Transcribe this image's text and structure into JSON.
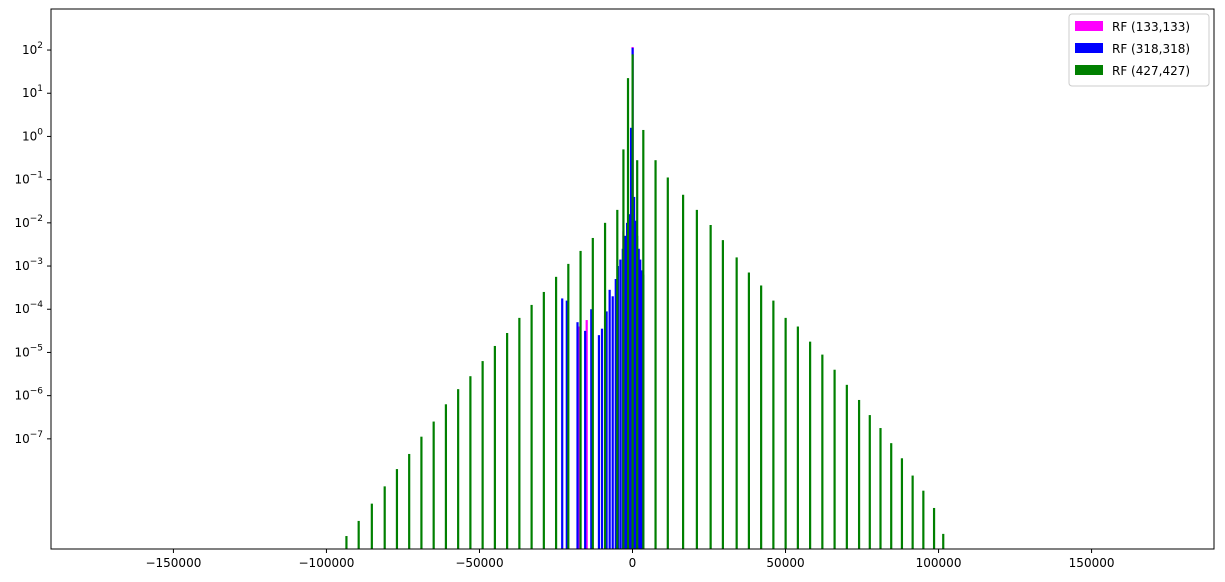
{
  "chart_data": {
    "type": "bar",
    "title": "",
    "xlabel": "",
    "ylabel": "",
    "xscale": "linear",
    "yscale": "log",
    "xlim": [
      -190000,
      190000
    ],
    "ylim_log10": [
      -9.55,
      2.95
    ],
    "grid": false,
    "legend_position": "top-right",
    "x_ticks": [
      {
        "value": -150000,
        "label": "−150000"
      },
      {
        "value": -100000,
        "label": "−100000"
      },
      {
        "value": -50000,
        "label": "−50000"
      },
      {
        "value": 0,
        "label": "0"
      },
      {
        "value": 50000,
        "label": "50000"
      },
      {
        "value": 100000,
        "label": "100000"
      },
      {
        "value": 150000,
        "label": "150000"
      }
    ],
    "y_ticks": [
      {
        "exp": 2,
        "base": "10",
        "label": "2"
      },
      {
        "exp": 1,
        "base": "10",
        "label": "1"
      },
      {
        "exp": 0,
        "base": "10",
        "label": "0"
      },
      {
        "exp": -1,
        "base": "10",
        "label": "−1"
      },
      {
        "exp": -2,
        "base": "10",
        "label": "−2"
      },
      {
        "exp": -3,
        "base": "10",
        "label": "−3"
      },
      {
        "exp": -4,
        "base": "10",
        "label": "−4"
      },
      {
        "exp": -5,
        "base": "10",
        "label": "−5"
      },
      {
        "exp": -6,
        "base": "10",
        "label": "−6"
      },
      {
        "exp": -7,
        "base": "10",
        "label": "−7"
      }
    ],
    "series": [
      {
        "name": "RF (133,133)",
        "color": "#ff00ff",
        "bars": [
          {
            "x": 0,
            "log10y": 2.07
          },
          {
            "x": -3000,
            "log10y": -2.2
          },
          {
            "x": -15000,
            "log10y": -4.25
          },
          {
            "x": -17500,
            "log10y": -4.4
          }
        ]
      },
      {
        "name": "RF (318,318)",
        "color": "#0000ff",
        "bars": [
          {
            "x": -23000,
            "log10y": -3.75
          },
          {
            "x": -21500,
            "log10y": -3.8
          },
          {
            "x": -18000,
            "log10y": -4.3
          },
          {
            "x": -15500,
            "log10y": -4.5
          },
          {
            "x": -13500,
            "log10y": -4.0
          },
          {
            "x": -11000,
            "log10y": -4.6
          },
          {
            "x": -10000,
            "log10y": -4.45
          },
          {
            "x": -9000,
            "log10y": -4.15
          },
          {
            "x": -8500,
            "log10y": -4.05
          },
          {
            "x": -7500,
            "log10y": -3.55
          },
          {
            "x": -6500,
            "log10y": -3.7
          },
          {
            "x": -5500,
            "log10y": -3.3
          },
          {
            "x": -4800,
            "log10y": -3.0
          },
          {
            "x": -4000,
            "log10y": -2.85
          },
          {
            "x": -3200,
            "log10y": -2.6
          },
          {
            "x": -2500,
            "log10y": -2.3
          },
          {
            "x": -1800,
            "log10y": -2.0
          },
          {
            "x": -1000,
            "log10y": -1.8
          },
          {
            "x": -500,
            "log10y": 0.2
          },
          {
            "x": 0,
            "log10y": 2.05
          },
          {
            "x": 500,
            "log10y": -1.4
          },
          {
            "x": 1000,
            "log10y": -1.95
          },
          {
            "x": 1500,
            "log10y": -2.3
          },
          {
            "x": 2000,
            "log10y": -2.6
          },
          {
            "x": 2500,
            "log10y": -2.85
          },
          {
            "x": 3000,
            "log10y": -3.1
          },
          {
            "x": 3500,
            "log10y": -3.2
          }
        ]
      },
      {
        "name": "RF (427,427)",
        "color": "#008000",
        "bars": [
          {
            "x": -93500,
            "log10y": -9.25
          },
          {
            "x": -89500,
            "log10y": -8.9
          },
          {
            "x": -85200,
            "log10y": -8.5
          },
          {
            "x": -81000,
            "log10y": -8.1
          },
          {
            "x": -77000,
            "log10y": -7.7
          },
          {
            "x": -73000,
            "log10y": -7.35
          },
          {
            "x": -69000,
            "log10y": -6.95
          },
          {
            "x": -65000,
            "log10y": -6.6
          },
          {
            "x": -61000,
            "log10y": -6.2
          },
          {
            "x": -57000,
            "log10y": -5.85
          },
          {
            "x": -53000,
            "log10y": -5.55
          },
          {
            "x": -49000,
            "log10y": -5.2
          },
          {
            "x": -45000,
            "log10y": -4.85
          },
          {
            "x": -41000,
            "log10y": -4.55
          },
          {
            "x": -37000,
            "log10y": -4.2
          },
          {
            "x": -33000,
            "log10y": -3.9
          },
          {
            "x": -29000,
            "log10y": -3.6
          },
          {
            "x": -25000,
            "log10y": -3.25
          },
          {
            "x": -21000,
            "log10y": -2.95
          },
          {
            "x": -17000,
            "log10y": -2.65
          },
          {
            "x": -13000,
            "log10y": -2.35
          },
          {
            "x": -9000,
            "log10y": -2.0
          },
          {
            "x": -5000,
            "log10y": -1.7
          },
          {
            "x": -3000,
            "log10y": -0.3
          },
          {
            "x": -1500,
            "log10y": 1.35
          },
          {
            "x": 0,
            "log10y": 1.9
          },
          {
            "x": 1500,
            "log10y": -0.55
          },
          {
            "x": 3500,
            "log10y": 0.15
          },
          {
            "x": 7500,
            "log10y": -0.55
          },
          {
            "x": 11500,
            "log10y": -0.95
          },
          {
            "x": 16500,
            "log10y": -1.35
          },
          {
            "x": 21000,
            "log10y": -1.7
          },
          {
            "x": 25500,
            "log10y": -2.05
          },
          {
            "x": 29500,
            "log10y": -2.4
          },
          {
            "x": 34000,
            "log10y": -2.8
          },
          {
            "x": 38000,
            "log10y": -3.15
          },
          {
            "x": 42000,
            "log10y": -3.45
          },
          {
            "x": 46000,
            "log10y": -3.8
          },
          {
            "x": 50000,
            "log10y": -4.2
          },
          {
            "x": 54000,
            "log10y": -4.4
          },
          {
            "x": 58000,
            "log10y": -4.75
          },
          {
            "x": 62000,
            "log10y": -5.05
          },
          {
            "x": 66000,
            "log10y": -5.4
          },
          {
            "x": 70000,
            "log10y": -5.75
          },
          {
            "x": 74000,
            "log10y": -6.1
          },
          {
            "x": 77500,
            "log10y": -6.45
          },
          {
            "x": 81000,
            "log10y": -6.75
          },
          {
            "x": 84500,
            "log10y": -7.1
          },
          {
            "x": 88000,
            "log10y": -7.45
          },
          {
            "x": 91500,
            "log10y": -7.85
          },
          {
            "x": 95000,
            "log10y": -8.2
          },
          {
            "x": 98500,
            "log10y": -8.6
          },
          {
            "x": 101500,
            "log10y": -9.2
          }
        ]
      }
    ]
  }
}
